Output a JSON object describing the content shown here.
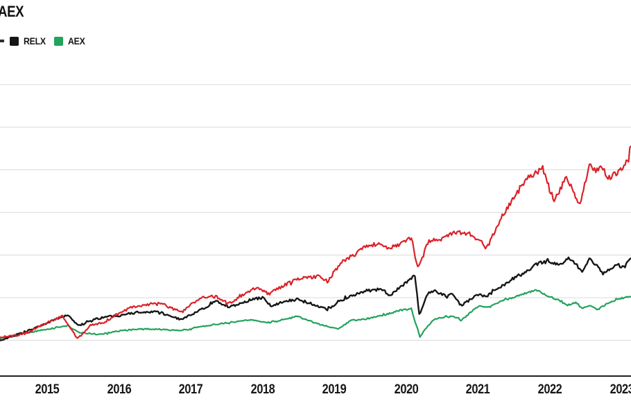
{
  "chart": {
    "title": "AEX",
    "legend": [
      {
        "label": "",
        "color": "#2e2e2e",
        "partial": true
      },
      {
        "label": "RELX",
        "color": "#161616"
      },
      {
        "label": "AEX",
        "color": "#23a35c"
      }
    ]
  },
  "chart_data": {
    "type": "line",
    "title": "AEX",
    "xlabel": "",
    "ylabel": "",
    "xlim": [
      2014.34,
      2023.13
    ],
    "ylim": [
      58,
      426
    ],
    "x_ticks": [
      "2015",
      "2016",
      "2017",
      "2018",
      "2019",
      "2020",
      "2021",
      "2022",
      "2023"
    ],
    "x_tick_years": [
      2015,
      2016,
      2017,
      2018,
      2019,
      2020,
      2021,
      2022,
      2023
    ],
    "gridline_values": [
      100,
      150,
      200,
      250,
      300,
      350,
      400
    ],
    "grid": "horizontal",
    "legend_position": "top-left",
    "baseline_index": 100,
    "colors": {
      "grid": "#d9d9d9",
      "axis": "#1f1f1f",
      "text": "#161616",
      "background": "#ffffff"
    },
    "series": [
      {
        "name": "AEX",
        "color": "#23a35c",
        "points": [
          [
            2014.34,
            102
          ],
          [
            2014.54,
            106
          ],
          [
            2014.73,
            109
          ],
          [
            2015.0,
            113
          ],
          [
            2015.28,
            117
          ],
          [
            2015.45,
            109
          ],
          [
            2015.72,
            107
          ],
          [
            2016.0,
            111
          ],
          [
            2016.27,
            113
          ],
          [
            2016.56,
            113
          ],
          [
            2016.87,
            111
          ],
          [
            2017.21,
            117
          ],
          [
            2017.53,
            121
          ],
          [
            2017.85,
            124
          ],
          [
            2018.08,
            121
          ],
          [
            2018.33,
            125
          ],
          [
            2018.49,
            128
          ],
          [
            2018.78,
            119
          ],
          [
            2019.05,
            113
          ],
          [
            2019.22,
            123
          ],
          [
            2019.43,
            125
          ],
          [
            2019.6,
            128
          ],
          [
            2019.75,
            131
          ],
          [
            2019.91,
            135
          ],
          [
            2020.07,
            137
          ],
          [
            2020.19,
            104
          ],
          [
            2020.3,
            117
          ],
          [
            2020.4,
            125
          ],
          [
            2020.55,
            128
          ],
          [
            2020.71,
            127
          ],
          [
            2020.76,
            123
          ],
          [
            2021.0,
            140
          ],
          [
            2021.17,
            139
          ],
          [
            2021.32,
            146
          ],
          [
            2021.48,
            150
          ],
          [
            2021.65,
            155
          ],
          [
            2021.81,
            159
          ],
          [
            2021.97,
            152
          ],
          [
            2022.13,
            147
          ],
          [
            2022.23,
            141
          ],
          [
            2022.36,
            144
          ],
          [
            2022.45,
            137
          ],
          [
            2022.55,
            141
          ],
          [
            2022.67,
            136
          ],
          [
            2022.81,
            144
          ],
          [
            2022.94,
            148
          ],
          [
            2023.13,
            152
          ]
        ]
      },
      {
        "name": "RELX",
        "color": "#161616",
        "points": [
          [
            2014.34,
            99
          ],
          [
            2014.49,
            104
          ],
          [
            2014.73,
            111
          ],
          [
            2015.0,
            121
          ],
          [
            2015.28,
            129
          ],
          [
            2015.45,
            117
          ],
          [
            2015.6,
            124
          ],
          [
            2015.79,
            127
          ],
          [
            2016.0,
            129
          ],
          [
            2016.27,
            133
          ],
          [
            2016.56,
            133
          ],
          [
            2016.87,
            124
          ],
          [
            2017.14,
            136
          ],
          [
            2017.36,
            146
          ],
          [
            2017.53,
            139
          ],
          [
            2017.85,
            148
          ],
          [
            2018.01,
            150
          ],
          [
            2018.11,
            140
          ],
          [
            2018.33,
            146
          ],
          [
            2018.49,
            148
          ],
          [
            2018.78,
            140
          ],
          [
            2018.9,
            136
          ],
          [
            2019.1,
            147
          ],
          [
            2019.43,
            158
          ],
          [
            2019.65,
            160
          ],
          [
            2019.77,
            152
          ],
          [
            2019.91,
            162
          ],
          [
            2020.12,
            176
          ],
          [
            2020.18,
            130
          ],
          [
            2020.3,
            155
          ],
          [
            2020.4,
            158
          ],
          [
            2020.55,
            152
          ],
          [
            2020.64,
            155
          ],
          [
            2020.76,
            141
          ],
          [
            2020.88,
            147
          ],
          [
            2021.0,
            154
          ],
          [
            2021.1,
            151
          ],
          [
            2021.32,
            163
          ],
          [
            2021.48,
            172
          ],
          [
            2021.65,
            180
          ],
          [
            2021.81,
            189
          ],
          [
            2021.97,
            194
          ],
          [
            2022.13,
            188
          ],
          [
            2022.26,
            197
          ],
          [
            2022.36,
            190
          ],
          [
            2022.45,
            180
          ],
          [
            2022.55,
            196
          ],
          [
            2022.64,
            189
          ],
          [
            2022.74,
            178
          ],
          [
            2022.81,
            182
          ],
          [
            2022.94,
            189
          ],
          [
            2023.03,
            185
          ],
          [
            2023.13,
            197
          ]
        ]
      },
      {
        "name": "",
        "color": "#dc2128",
        "points": [
          [
            2014.34,
            103
          ],
          [
            2014.54,
            105
          ],
          [
            2014.73,
            109
          ],
          [
            2015.0,
            121
          ],
          [
            2015.21,
            128
          ],
          [
            2015.42,
            102
          ],
          [
            2015.6,
            117
          ],
          [
            2015.79,
            121
          ],
          [
            2016.0,
            132
          ],
          [
            2016.18,
            139
          ],
          [
            2016.56,
            144
          ],
          [
            2016.87,
            133
          ],
          [
            2017.14,
            150
          ],
          [
            2017.36,
            151
          ],
          [
            2017.53,
            143
          ],
          [
            2017.85,
            159
          ],
          [
            2017.94,
            162
          ],
          [
            2018.08,
            154
          ],
          [
            2018.33,
            166
          ],
          [
            2018.49,
            172
          ],
          [
            2018.78,
            175
          ],
          [
            2018.9,
            169
          ],
          [
            2019.1,
            192
          ],
          [
            2019.27,
            200
          ],
          [
            2019.43,
            211
          ],
          [
            2019.6,
            213
          ],
          [
            2019.75,
            208
          ],
          [
            2019.91,
            212
          ],
          [
            2020.07,
            221
          ],
          [
            2020.16,
            185
          ],
          [
            2020.3,
            215
          ],
          [
            2020.55,
            223
          ],
          [
            2020.71,
            227
          ],
          [
            2020.88,
            224
          ],
          [
            2021.0,
            220
          ],
          [
            2021.12,
            208
          ],
          [
            2021.32,
            243
          ],
          [
            2021.48,
            265
          ],
          [
            2021.65,
            286
          ],
          [
            2021.9,
            302
          ],
          [
            2022.06,
            263
          ],
          [
            2022.23,
            292
          ],
          [
            2022.42,
            258
          ],
          [
            2022.55,
            308
          ],
          [
            2022.64,
            298
          ],
          [
            2022.74,
            303
          ],
          [
            2022.81,
            290
          ],
          [
            2022.94,
            296
          ],
          [
            2023.0,
            302
          ],
          [
            2023.08,
            310
          ],
          [
            2023.13,
            330
          ]
        ]
      }
    ]
  }
}
